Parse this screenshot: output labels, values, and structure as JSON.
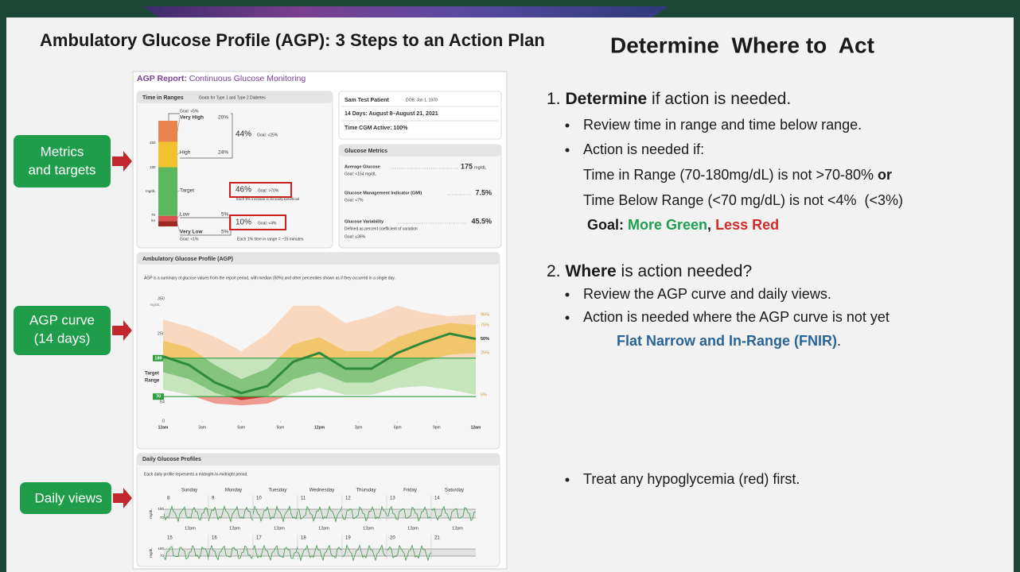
{
  "slide": {
    "title": "Ambulatory Glucose Profile (AGP): 3 Steps to an Action Plan",
    "heading": "Determine  Where to  Act",
    "callouts": [
      [
        "Metrics",
        "and targets"
      ],
      [
        "AGP curve",
        "(14 days)"
      ],
      [
        "Daily views"
      ]
    ]
  },
  "steps": {
    "s1": {
      "num": "1.",
      "key": "Determine",
      "rest": " if action is needed.",
      "b1": "Review time in range and time below range.",
      "b2": "Action is needed if:",
      "c1": "Time in Range (70-180mg/dL) is not >70-80% ",
      "c1b": "or",
      "c2": "Time Below Range (<70 mg/dL) is not <4%  (<3%)",
      "goal": "Goal: ",
      "green": "More Green",
      "sep": ", ",
      "red": "Less Red"
    },
    "s2": {
      "num": "2.",
      "key": "Where",
      "rest": " is action needed?",
      "b1": "Review the AGP curve and daily views.",
      "b2": "Action is needed where the AGP curve is not yet",
      "fnir": "Flat Narrow and In-Range (FNIR)",
      "end": "."
    },
    "s3": {
      "b1": "Treat any hypoglycemia (red) first."
    }
  },
  "report": {
    "header": {
      "key": "AGP Report:",
      "rest": " Continuous Glucose Monitoring"
    },
    "tir": {
      "title": "Time in Ranges",
      "subtitle": "Goals for Type 1 and Type 2 Diabetes",
      "ranges": [
        {
          "name": "Very High",
          "value": 20,
          "label": "20%",
          "color": "#e8854f"
        },
        {
          "name": "High",
          "value": 24,
          "label": "24%",
          "color": "#f2c12e"
        },
        {
          "name": "Target",
          "value": 46,
          "label": "46%",
          "color": "#5cb85c"
        },
        {
          "name": "Low",
          "value": 5,
          "label": "5%",
          "color": "#d9534f"
        },
        {
          "name": "Very Low",
          "value": 5,
          "label": "5%",
          "color": "#9e2a22"
        }
      ],
      "combined_high": {
        "value": 44,
        "label": "44%",
        "goal": "Goal: <25%"
      },
      "target_goal": "Goal: >70%",
      "target_note": "Each 5% increase is clinically beneficial",
      "combined_low": {
        "value": 10,
        "label": "10%",
        "goal": "Goal: <4%"
      },
      "goal_very_high": "Goal: <5%",
      "goal_very_low": "Goal: <1%",
      "note": "Each 1% time in range = ~15 minutes",
      "axis": [
        "250",
        "180",
        "mg/dL",
        "70",
        "54"
      ]
    },
    "patient": {
      "name": "Sam Test Patient",
      "dob": "DOB: Jan 1, 1970",
      "period": "14 Days: August 8–August 21, 2021",
      "active": "Time CGM Active: 100%"
    },
    "metrics": {
      "title": "Glucose Metrics",
      "rows": [
        {
          "name": "Average Glucose",
          "value": "175",
          "unit": "mg/dL",
          "goal": "Goal: <154 mg/dL"
        },
        {
          "name": "Glucose Management Indicator (GMI)",
          "value": "7.5%",
          "goal": "Goal: <7%"
        },
        {
          "name": "Glucose Variability",
          "value": "45.5%",
          "note": "Defined as percent coefficient of variation",
          "goal": "Goal: ≤36%"
        }
      ]
    },
    "daily": {
      "title": "Daily Glucose Profiles",
      "note": "Each daily profile represents a midnight-to-midnight period.",
      "days": [
        "Sunday",
        "Monday",
        "Tuesday",
        "Wednesday",
        "Thursday",
        "Friday",
        "Saturday"
      ],
      "dates": [
        [
          "8",
          "9",
          "10",
          "11",
          "12",
          "13",
          "14"
        ],
        [
          "15",
          "16",
          "17",
          "18",
          "19",
          "20",
          "21"
        ]
      ],
      "noon": "12pm",
      "unit": "mg/dL",
      "ticks": [
        "180",
        "70"
      ]
    }
  },
  "chart_data": {
    "type": "line",
    "title": "Ambulatory Glucose Profile (AGP)",
    "subtitle": "AGP is a summary of glucose values from the report period, with median (50%) and other percentiles shown as if they occurred in a single day.",
    "y_unit": "mg/dL",
    "target_label": [
      "Target",
      "Range"
    ],
    "target_range": [
      70,
      180
    ],
    "x": [
      0,
      2,
      4,
      6,
      8,
      10,
      12,
      14,
      16,
      18,
      20,
      22,
      24
    ],
    "xlim": [
      0,
      24
    ],
    "xticks": [
      {
        "value": 0,
        "label": "12am"
      },
      {
        "value": 3,
        "label": "3am"
      },
      {
        "value": 6,
        "label": "6am"
      },
      {
        "value": 9,
        "label": "9am"
      },
      {
        "value": 12,
        "label": "12pm"
      },
      {
        "value": 15,
        "label": "3pm"
      },
      {
        "value": 18,
        "label": "6pm"
      },
      {
        "value": 21,
        "label": "9pm"
      },
      {
        "value": 24,
        "label": "12am"
      }
    ],
    "ylim": [
      0,
      350
    ],
    "yticks": [
      0,
      54,
      70,
      180,
      250,
      350
    ],
    "band_colors": {
      "outer": [
        "#f8d8bf",
        "#c6e5bc",
        "#ee9b92"
      ],
      "inner": [
        "#f2c66c",
        "#84c47d",
        "#c5372c"
      ]
    },
    "series": [
      {
        "name": "95%",
        "color": "#999999",
        "values": [
          290,
          270,
          240,
          200,
          250,
          330,
          330,
          280,
          300,
          330,
          310,
          300,
          305
        ]
      },
      {
        "name": "75%",
        "color": "#999999",
        "values": [
          230,
          210,
          160,
          120,
          150,
          220,
          240,
          200,
          200,
          240,
          265,
          280,
          275
        ]
      },
      {
        "name": "50%",
        "color": "#2f8a3c",
        "values": [
          185,
          160,
          110,
          80,
          100,
          170,
          195,
          150,
          150,
          195,
          225,
          250,
          235
        ]
      },
      {
        "name": "25%",
        "color": "#999999",
        "values": [
          140,
          120,
          80,
          60,
          70,
          120,
          140,
          110,
          110,
          140,
          170,
          190,
          195
        ]
      },
      {
        "name": "5%",
        "color": "#999999",
        "values": [
          90,
          75,
          50,
          45,
          50,
          80,
          95,
          75,
          75,
          95,
          100,
          90,
          75
        ]
      }
    ]
  }
}
